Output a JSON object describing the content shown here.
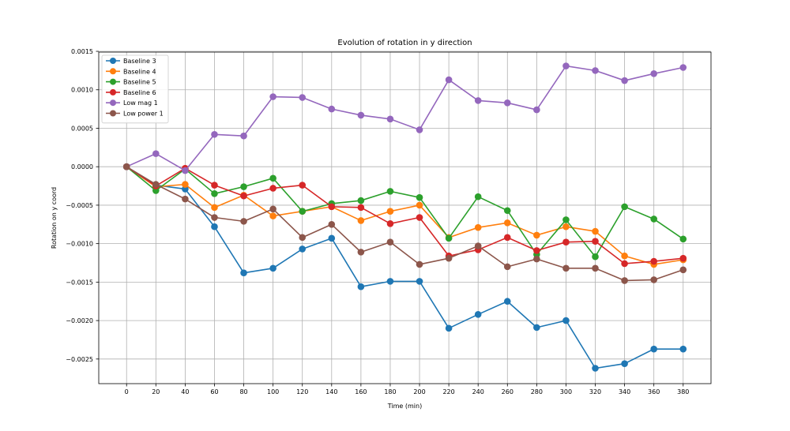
{
  "chart_data": {
    "type": "line",
    "title": "Evolution of rotation in y direction",
    "xlabel": "Time (min)",
    "ylabel": "Rotation on y coord",
    "x": [
      0,
      20,
      40,
      60,
      80,
      100,
      120,
      140,
      160,
      180,
      200,
      220,
      240,
      260,
      280,
      300,
      320,
      340,
      360,
      380
    ],
    "xticks": [
      0,
      20,
      40,
      60,
      80,
      100,
      120,
      140,
      160,
      180,
      200,
      220,
      240,
      260,
      280,
      300,
      320,
      340,
      360,
      380
    ],
    "xlim": [
      -19,
      399
    ],
    "yticks": [
      -0.0025,
      -0.002,
      -0.0015,
      -0.001,
      -0.0005,
      0.0,
      0.0005,
      0.001,
      0.0015
    ],
    "ytick_labels": [
      "−0.0025",
      "−0.0020",
      "−0.0015",
      "−0.0010",
      "−0.0005",
      "0.0000",
      "0.0005",
      "0.0010",
      "0.0015"
    ],
    "ylim": [
      -0.00282,
      0.00149
    ],
    "grid": true,
    "legend_position": "top-left",
    "series": [
      {
        "name": "Baseline 3",
        "color": "#1f77b4",
        "values": [
          0,
          -0.00024,
          -0.00029,
          -0.00078,
          -0.00138,
          -0.00132,
          -0.00107,
          -0.00093,
          -0.00156,
          -0.00149,
          -0.00149,
          -0.0021,
          -0.00192,
          -0.00175,
          -0.00209,
          -0.002,
          -0.00262,
          -0.00256,
          -0.00237,
          -0.00237
        ]
      },
      {
        "name": "Baseline 4",
        "color": "#ff7f0e",
        "values": [
          0,
          -0.00026,
          -0.00023,
          -0.00053,
          -0.00037,
          -0.00064,
          -0.00058,
          -0.00052,
          -0.0007,
          -0.00058,
          -0.0005,
          -0.00092,
          -0.00079,
          -0.00073,
          -0.00089,
          -0.00078,
          -0.00084,
          -0.00116,
          -0.00127,
          -0.00121
        ]
      },
      {
        "name": "Baseline 5",
        "color": "#2ca02c",
        "values": [
          0,
          -0.00031,
          -3e-05,
          -0.00035,
          -0.00026,
          -0.00015,
          -0.00058,
          -0.00048,
          -0.00044,
          -0.00032,
          -0.0004,
          -0.00093,
          -0.00039,
          -0.00057,
          -0.00114,
          -0.00069,
          -0.00117,
          -0.00052,
          -0.00068,
          -0.00094
        ]
      },
      {
        "name": "Baseline 6",
        "color": "#d62728",
        "values": [
          0,
          -0.00025,
          -2e-05,
          -0.00024,
          -0.00038,
          -0.00028,
          -0.00024,
          -0.00052,
          -0.00053,
          -0.00074,
          -0.00066,
          -0.00116,
          -0.00108,
          -0.00092,
          -0.00109,
          -0.00098,
          -0.00097,
          -0.00126,
          -0.00123,
          -0.00119
        ]
      },
      {
        "name": "Low mag 1",
        "color": "#9467bd",
        "values": [
          0,
          0.00017,
          -5e-05,
          0.00042,
          0.0004,
          0.00091,
          0.0009,
          0.00075,
          0.00067,
          0.00062,
          0.00048,
          0.00113,
          0.00086,
          0.00083,
          0.00074,
          0.00131,
          0.00125,
          0.00112,
          0.00121,
          0.00129
        ]
      },
      {
        "name": "Low power 1",
        "color": "#8c564b",
        "values": [
          0,
          -0.00023,
          -0.00042,
          -0.00066,
          -0.00071,
          -0.00055,
          -0.00092,
          -0.00075,
          -0.00111,
          -0.00098,
          -0.00127,
          -0.00119,
          -0.00103,
          -0.0013,
          -0.0012,
          -0.00132,
          -0.00132,
          -0.00148,
          -0.00147,
          -0.00134
        ]
      }
    ]
  }
}
